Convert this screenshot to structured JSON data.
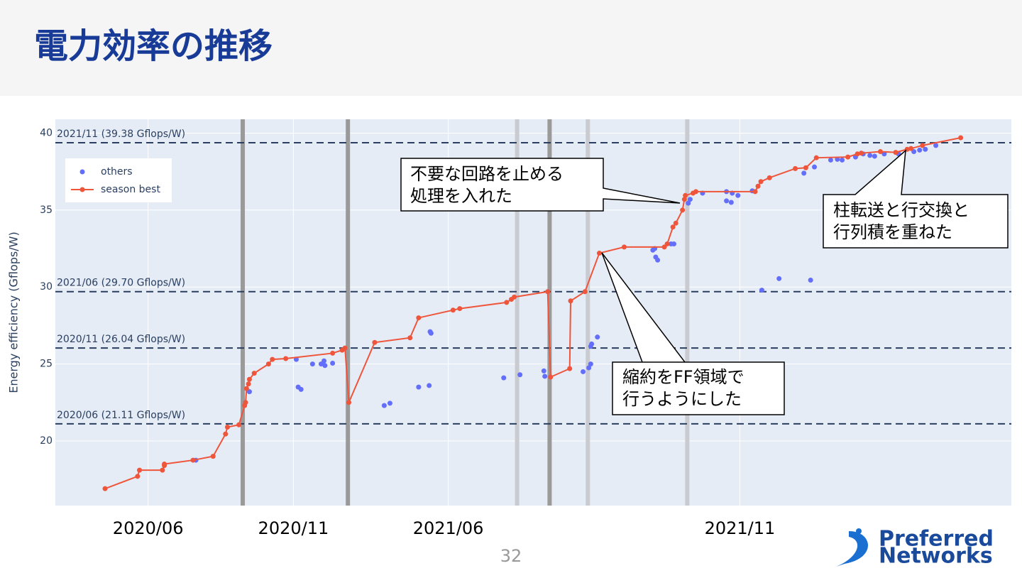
{
  "slide": {
    "title": "電力効率の推移",
    "page_number": "32",
    "logo": [
      "Preferred",
      "Networks"
    ]
  },
  "chart_data": {
    "type": "scatter-line",
    "y_label": "Energy efficiency (Gflops/W)",
    "xlim": [
      0,
      100
    ],
    "ylim": [
      15.8,
      40.9
    ],
    "xticks": [
      {
        "value": 9.7,
        "label": "2020/06"
      },
      {
        "value": 24.9,
        "label": "2020/11"
      },
      {
        "value": 41.1,
        "label": "2021/06"
      },
      {
        "value": 71.6,
        "label": "2021/11"
      }
    ],
    "yticks": [
      20,
      25,
      30,
      35,
      40
    ],
    "grid": true,
    "legend": "top-left",
    "series": [
      {
        "name": "others",
        "color": "#636efa",
        "mode": "markers",
        "x": [
          20.3,
          25.2,
          25.4,
          25.7,
          26.9,
          27.8,
          28.1,
          28.2,
          29.0,
          14.7,
          34.4,
          35.0,
          38.0,
          39.1,
          39.2,
          39.3,
          46.9,
          48.6,
          51.1,
          51.2,
          55.2,
          55.8,
          56.0,
          56.0,
          56.1,
          56.7,
          62.5,
          62.7,
          62.8,
          63.0,
          64.4,
          64.7,
          66.2,
          66.4,
          67.7,
          70.2,
          70.2,
          70.7,
          70.8,
          71.4,
          72.9,
          73.9,
          75.7,
          79.0,
          78.3,
          79.4,
          81.1,
          81.8,
          82.3,
          83.7,
          84.5,
          85.2,
          85.7,
          86.7,
          88.2,
          89.8,
          90.4,
          91.0,
          92.1
        ],
        "values": [
          23.2,
          25.3,
          23.5,
          23.35,
          25.0,
          25.0,
          25.2,
          24.9,
          25.05,
          18.75,
          22.3,
          22.45,
          23.5,
          23.6,
          27.1,
          27.0,
          24.1,
          24.3,
          24.55,
          24.2,
          24.5,
          24.75,
          25.0,
          26.15,
          26.3,
          26.75,
          32.4,
          32.5,
          31.95,
          31.75,
          32.8,
          32.8,
          35.45,
          35.7,
          36.1,
          36.2,
          35.6,
          35.5,
          36.1,
          35.95,
          36.25,
          29.8,
          30.55,
          30.45,
          37.4,
          37.8,
          38.25,
          38.3,
          38.25,
          38.45,
          38.65,
          38.55,
          38.5,
          38.65,
          38.65,
          38.8,
          38.9,
          38.95,
          39.2
        ]
      },
      {
        "name": "season best",
        "color": "#ef553b",
        "mode": "lines+markers",
        "x": [
          5.2,
          8.6,
          8.8,
          11.2,
          11.4,
          11.4,
          14.4,
          16.5,
          17.8,
          18.0,
          19.2,
          19.8,
          19.9,
          20.0,
          20.2,
          20.3,
          20.8,
          22.3,
          22.7,
          24.1,
          29.0,
          30.0,
          30.3,
          30.7,
          33.4,
          37.1,
          38.0,
          41.6,
          42.3,
          47.2,
          47.7,
          48.0,
          51.5,
          51.8,
          53.8,
          53.9,
          55.4,
          56.9,
          59.5,
          63.7,
          64.0,
          64.6,
          64.9,
          65.6,
          65.8,
          65.9,
          66.7,
          67.0,
          73.2,
          73.5,
          73.8,
          74.7,
          77.4,
          78.5,
          79.6,
          82.9,
          83.9,
          84.3,
          86.3,
          87.9,
          89.1,
          89.5,
          90.7,
          94.7
        ],
        "values": [
          16.9,
          17.7,
          18.1,
          18.1,
          18.4,
          18.5,
          18.75,
          19.0,
          20.45,
          20.9,
          21.05,
          22.3,
          22.5,
          23.4,
          23.7,
          24.0,
          24.4,
          25.0,
          25.3,
          25.35,
          25.7,
          25.9,
          26.04,
          22.5,
          26.4,
          26.7,
          28.0,
          28.5,
          28.6,
          29.0,
          29.2,
          29.35,
          29.7,
          24.15,
          24.7,
          29.1,
          29.7,
          32.2,
          32.6,
          32.6,
          32.8,
          33.9,
          34.15,
          35.0,
          35.7,
          35.95,
          36.1,
          36.2,
          36.2,
          36.55,
          36.85,
          37.1,
          37.7,
          37.75,
          38.4,
          38.45,
          38.65,
          38.7,
          38.8,
          38.75,
          38.95,
          39.0,
          39.2,
          39.7
        ]
      }
    ],
    "reference_lines": [
      {
        "value": 39.38,
        "label": "2021/11 (39.38 Gflops/W)"
      },
      {
        "value": 29.7,
        "label": "2021/06 (29.70 Gflops/W)"
      },
      {
        "value": 26.04,
        "label": "2020/11 (26.04 Gflops/W)"
      },
      {
        "value": 21.11,
        "label": "2020/06 (21.11 Gflops/W)"
      }
    ],
    "vertical_bands": [
      {
        "x": 19.6,
        "color": "#9a9a9a"
      },
      {
        "x": 30.6,
        "color": "#9a9a9a"
      },
      {
        "x": 48.3,
        "color": "#c9cbd1"
      },
      {
        "x": 51.7,
        "color": "#9a9a9a"
      },
      {
        "x": 55.7,
        "color": "#c9cbd1"
      },
      {
        "x": 66.1,
        "color": "#c9cbd1"
      }
    ],
    "annotations": [
      {
        "lines": [
          "不要な回路を止める",
          "処理を入れた"
        ]
      },
      {
        "lines": [
          "縮約をFF領域で",
          "行うようにした"
        ]
      },
      {
        "lines": [
          "柱転送と行交換と",
          "行列積を重ねた"
        ]
      }
    ]
  }
}
